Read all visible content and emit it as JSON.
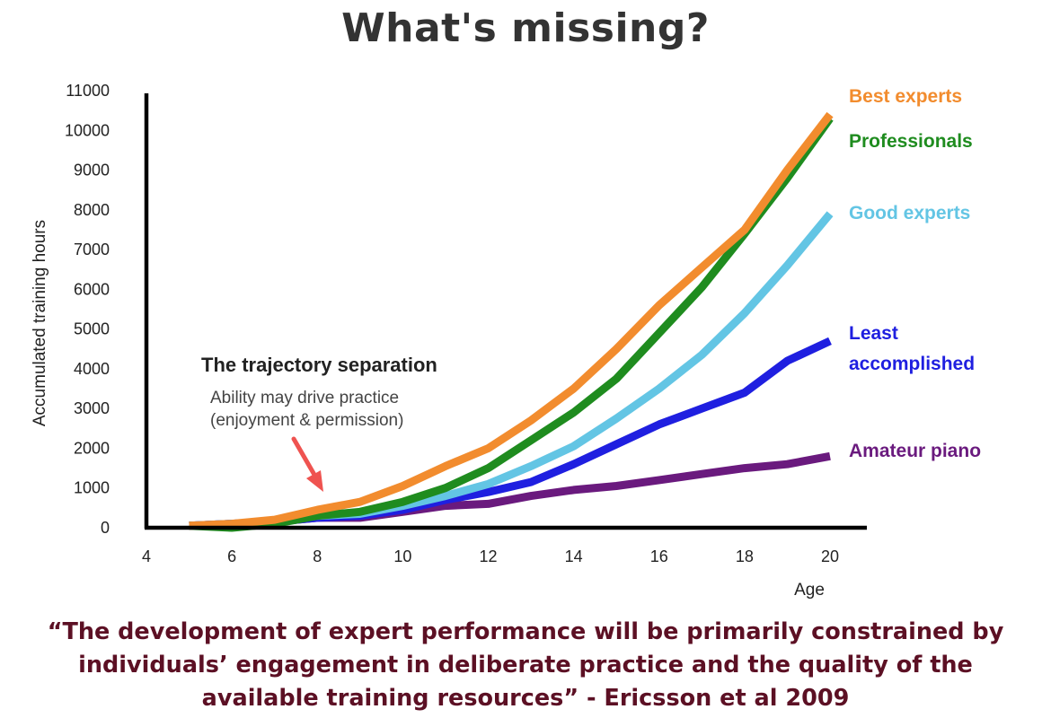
{
  "title": "What's missing?",
  "quote": "“The development of expert performance will be primarily constrained by individuals’ engagement in deliberate practice and the quality of the available training resources” - Ericsson et al 2009",
  "annotation": {
    "title": "The trajectory separation",
    "lines": [
      "Ability may drive practice",
      "(enjoyment & permission)"
    ],
    "arrow_color": "#ef5350"
  },
  "chart_data": {
    "type": "line",
    "xlabel": "Age",
    "ylabel": "Accumulated training hours",
    "xlim": [
      4,
      20
    ],
    "ylim": [
      0,
      11000
    ],
    "xticks": [
      4,
      6,
      8,
      10,
      12,
      14,
      16,
      18,
      20
    ],
    "yticks": [
      0,
      1000,
      2000,
      3000,
      4000,
      5000,
      6000,
      7000,
      8000,
      9000,
      10000,
      11000
    ],
    "series": [
      {
        "name": "Amateur piano",
        "color": "#6a1a7e",
        "points": [
          [
            5,
            50
          ],
          [
            6,
            100
          ],
          [
            7,
            150
          ],
          [
            8,
            250
          ],
          [
            9,
            250
          ],
          [
            10,
            400
          ],
          [
            11,
            550
          ],
          [
            12,
            600
          ],
          [
            13,
            800
          ],
          [
            14,
            950
          ],
          [
            15,
            1050
          ],
          [
            16,
            1200
          ],
          [
            17,
            1350
          ],
          [
            18,
            1500
          ],
          [
            19,
            1600
          ],
          [
            20,
            1800
          ]
        ]
      },
      {
        "name": "Least accomplished",
        "color": "#1f1fe0",
        "points": [
          [
            5,
            50
          ],
          [
            6,
            100
          ],
          [
            7,
            150
          ],
          [
            8,
            250
          ],
          [
            9,
            300
          ],
          [
            10,
            450
          ],
          [
            11,
            700
          ],
          [
            12,
            900
          ],
          [
            13,
            1150
          ],
          [
            14,
            1600
          ],
          [
            15,
            2100
          ],
          [
            16,
            2600
          ],
          [
            17,
            3000
          ],
          [
            18,
            3400
          ],
          [
            19,
            4200
          ],
          [
            20,
            4700
          ]
        ]
      },
      {
        "name": "Good experts",
        "color": "#63c5e4",
        "points": [
          [
            5,
            50
          ],
          [
            6,
            100
          ],
          [
            7,
            150
          ],
          [
            8,
            300
          ],
          [
            9,
            350
          ],
          [
            10,
            550
          ],
          [
            11,
            800
          ],
          [
            12,
            1100
          ],
          [
            13,
            1550
          ],
          [
            14,
            2050
          ],
          [
            15,
            2750
          ],
          [
            16,
            3500
          ],
          [
            17,
            4350
          ],
          [
            18,
            5400
          ],
          [
            19,
            6600
          ],
          [
            20,
            7900
          ]
        ]
      },
      {
        "name": "Professionals",
        "color": "#1f8c1f",
        "points": [
          [
            5,
            50
          ],
          [
            6,
            0
          ],
          [
            7,
            100
          ],
          [
            8,
            300
          ],
          [
            9,
            400
          ],
          [
            10,
            650
          ],
          [
            11,
            1000
          ],
          [
            12,
            1500
          ],
          [
            13,
            2200
          ],
          [
            14,
            2900
          ],
          [
            15,
            3750
          ],
          [
            16,
            4900
          ],
          [
            17,
            6050
          ],
          [
            18,
            7400
          ],
          [
            19,
            8800
          ],
          [
            20,
            10300
          ]
        ]
      },
      {
        "name": "Best experts",
        "color": "#f28c2e",
        "points": [
          [
            5,
            50
          ],
          [
            6,
            100
          ],
          [
            7,
            200
          ],
          [
            8,
            450
          ],
          [
            9,
            650
          ],
          [
            10,
            1050
          ],
          [
            11,
            1550
          ],
          [
            12,
            2000
          ],
          [
            13,
            2700
          ],
          [
            14,
            3500
          ],
          [
            15,
            4500
          ],
          [
            16,
            5600
          ],
          [
            17,
            6550
          ],
          [
            18,
            7500
          ],
          [
            19,
            9000
          ],
          [
            20,
            10400
          ]
        ]
      }
    ],
    "legend": [
      {
        "lines": [
          "Best experts"
        ],
        "color": "#f28c2e"
      },
      {
        "lines": [
          "Professionals"
        ],
        "color": "#1f8c1f"
      },
      {
        "lines": [
          "Good experts"
        ],
        "color": "#63c5e4"
      },
      {
        "lines": [
          "Least",
          "accomplished"
        ],
        "color": "#1f1fe0"
      },
      {
        "lines": [
          "Amateur piano"
        ],
        "color": "#6a1a7e"
      }
    ]
  }
}
